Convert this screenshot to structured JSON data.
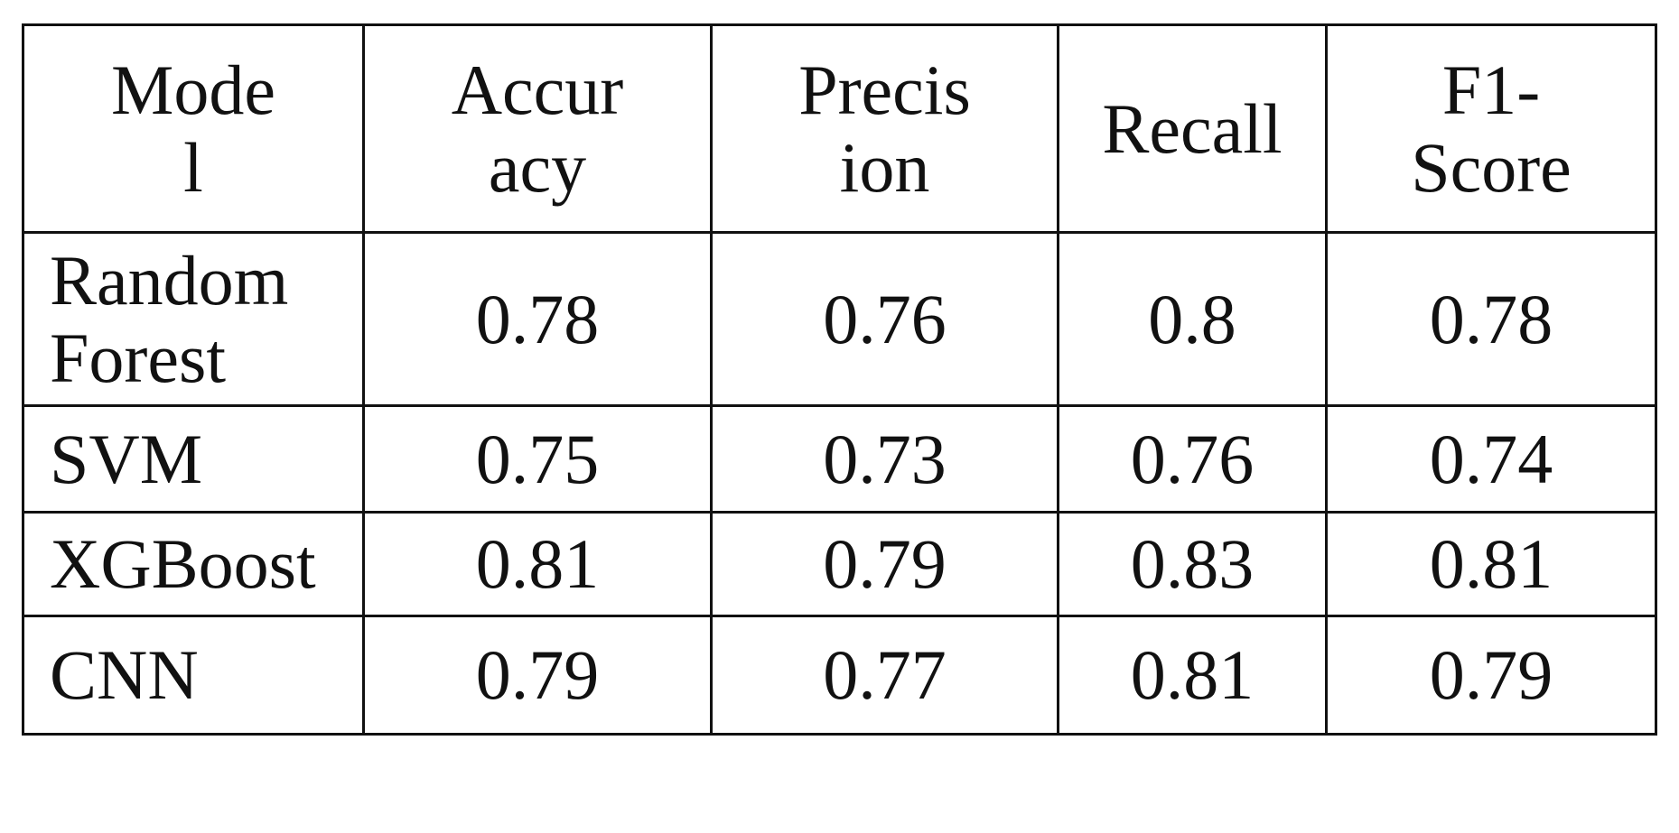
{
  "table": {
    "columns": [
      "Model",
      "Accuracy",
      "Precision",
      "Recall",
      "F1-Score"
    ],
    "rows": [
      [
        "Random Forest",
        0.78,
        0.76,
        0.8,
        0.78
      ],
      [
        "SVM",
        0.75,
        0.73,
        0.76,
        0.74
      ],
      [
        "XGBoost",
        0.81,
        0.79,
        0.83,
        0.81
      ],
      [
        "CNN",
        0.79,
        0.77,
        0.81,
        0.79
      ]
    ]
  }
}
